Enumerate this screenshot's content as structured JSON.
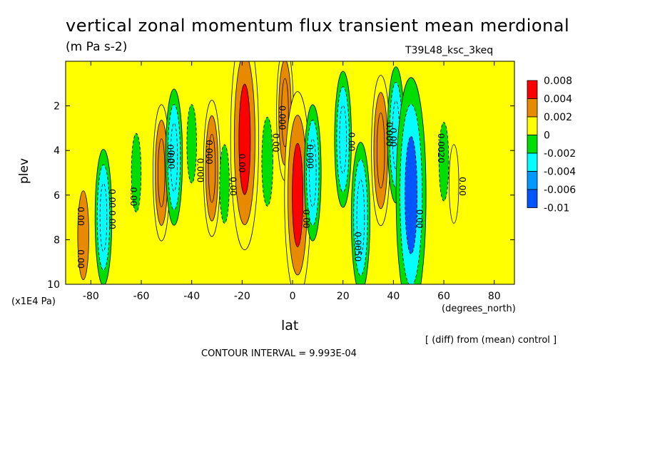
{
  "chart_data": {
    "type": "heatmap",
    "title": "vertical zonal momentum flux transient mean merdional",
    "units": "(m Pa s-2)",
    "run_label": "T39L48_ksc_3keq",
    "xlabel": "lat",
    "xlabel_units": "(degrees_north)",
    "ylabel": "plev",
    "ylabel_units": "(x1E4 Pa)",
    "subtitle": "[ (diff) from (mean) control ]",
    "contour_interval": "CONTOUR INTERVAL = 9.993E-04",
    "xlim": [
      -90,
      88
    ],
    "ylim": [
      10,
      0
    ],
    "xticks": [
      -80,
      -60,
      -40,
      -20,
      0,
      20,
      40,
      60,
      80
    ],
    "yticks": [
      2,
      4,
      6,
      8,
      10
    ],
    "colorbar": {
      "levels": [
        "0.008",
        "0.004",
        "0.002",
        "0",
        "-0.002",
        "-0.004",
        "-0.006",
        "-0.01"
      ],
      "colors": [
        "#ff0000",
        "#e88a00",
        "#ffff00",
        "#00dd00",
        "#00ffff",
        "#0099ff",
        "#0055ff"
      ]
    },
    "background_color": "#ffff00",
    "features": [
      {
        "lat": -83,
        "plev": 7.8,
        "value": 0.002
      },
      {
        "lat": -75,
        "plev": 7.0,
        "value": -0.003
      },
      {
        "lat": -62,
        "plev": 5.0,
        "value": -0.001
      },
      {
        "lat": -52,
        "plev": 5.0,
        "value": 0.003
      },
      {
        "lat": -47,
        "plev": 4.3,
        "value": -0.003
      },
      {
        "lat": -40,
        "plev": 3.7,
        "value": -0.001
      },
      {
        "lat": -32,
        "plev": 4.8,
        "value": 0.003
      },
      {
        "lat": -27,
        "plev": 5.5,
        "value": -0.001
      },
      {
        "lat": -19,
        "plev": 3.5,
        "value": 0.009
      },
      {
        "lat": -10,
        "plev": 4.5,
        "value": -0.002
      },
      {
        "lat": -3,
        "plev": 2.3,
        "value": 0.003
      },
      {
        "lat": 2,
        "plev": 6.0,
        "value": 0.008
      },
      {
        "lat": 8,
        "plev": 5.0,
        "value": -0.003
      },
      {
        "lat": 20,
        "plev": 3.5,
        "value": -0.003
      },
      {
        "lat": 27,
        "plev": 7.0,
        "value": -0.004
      },
      {
        "lat": 35,
        "plev": 4.0,
        "value": 0.004
      },
      {
        "lat": 41,
        "plev": 3.3,
        "value": -0.003
      },
      {
        "lat": 47,
        "plev": 6.0,
        "value": -0.01
      },
      {
        "lat": 60,
        "plev": 4.5,
        "value": -0.001
      },
      {
        "lat": 64,
        "plev": 5.5,
        "value": 0.001
      }
    ],
    "contour_labels": [
      "0.00",
      "0.00",
      "0.00",
      "0.00",
      "0.00",
      "0.000",
      "0.000",
      "0.00",
      "0.00",
      "0.00",
      "0.000",
      "0.00",
      "0.000",
      "0.00",
      "0.0050",
      "0.000",
      "0.00",
      "0.00",
      "0.0020",
      "0.00",
      "0.00",
      "0.00"
    ]
  }
}
